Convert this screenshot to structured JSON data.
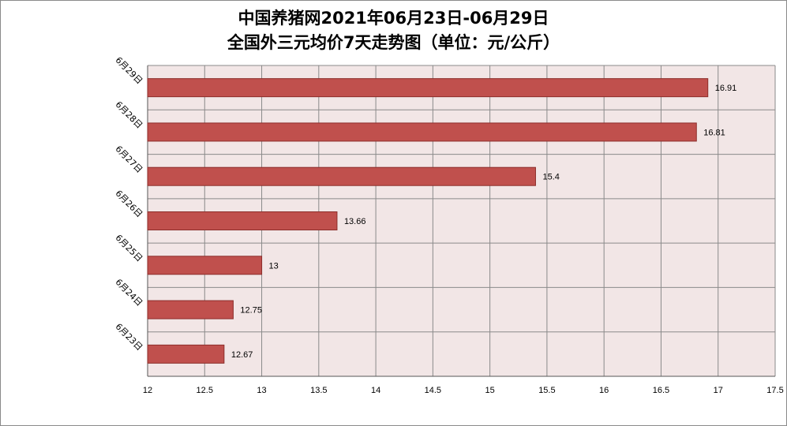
{
  "chart_data": {
    "type": "bar",
    "orientation": "horizontal",
    "title_line1": "中国养猪网2021年06月23日-06月29日",
    "title_line2": "全国外三元均价7天走势图（单位：元/公斤）",
    "categories": [
      "6月29日",
      "6月28日",
      "6月27日",
      "6月26日",
      "6月25日",
      "6月24日",
      "6月23日"
    ],
    "values": [
      16.91,
      16.81,
      15.4,
      13.66,
      13,
      12.75,
      12.67
    ],
    "value_labels": [
      "16.91",
      "16.81",
      "15.4",
      "13.66",
      "13",
      "12.75",
      "12.67"
    ],
    "xlim": [
      12,
      17.5
    ],
    "xticks": [
      "12",
      "12.5",
      "13",
      "13.5",
      "14",
      "14.5",
      "15",
      "15.5",
      "16",
      "16.5",
      "17",
      "17.5"
    ],
    "grid": true,
    "legend": "none",
    "colors": {
      "bar": "#c0504d",
      "bar_edge": "#8c2d2a",
      "plot_bg": "#f2e6e6",
      "grid": "#8a8a8a"
    }
  }
}
